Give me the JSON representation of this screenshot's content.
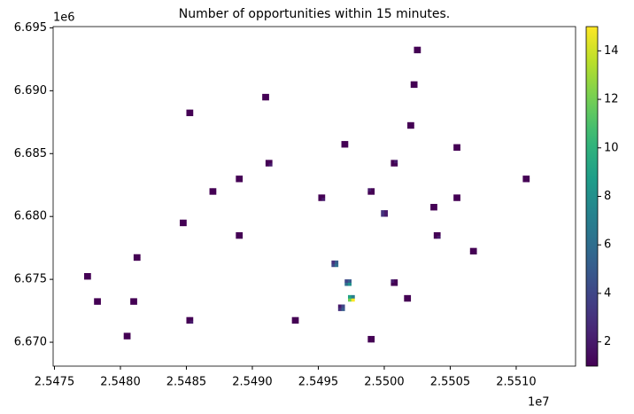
{
  "chart_data": {
    "type": "heatmap",
    "title": "Number of opportunities within 15 minutes.",
    "colormap": "viridis",
    "xlim": [
      25474900,
      25514500
    ],
    "ylim": [
      6668100,
      6695100
    ],
    "xticks": [
      {
        "value": 25475000,
        "label": "2.5475"
      },
      {
        "value": 25480000,
        "label": "2.5480"
      },
      {
        "value": 25485000,
        "label": "2.5485"
      },
      {
        "value": 25490000,
        "label": "2.5490"
      },
      {
        "value": 25495000,
        "label": "2.5495"
      },
      {
        "value": 25500000,
        "label": "2.5500"
      },
      {
        "value": 25505000,
        "label": "2.5505"
      },
      {
        "value": 25510000,
        "label": "2.5510"
      }
    ],
    "yticks": [
      {
        "value": 6670000,
        "label": "6.670"
      },
      {
        "value": 6675000,
        "label": "6.675"
      },
      {
        "value": 6680000,
        "label": "6.680"
      },
      {
        "value": 6685000,
        "label": "6.685"
      },
      {
        "value": 6690000,
        "label": "6.690"
      },
      {
        "value": 6695000,
        "label": "6.695"
      }
    ],
    "x_offset_label": "1e7",
    "y_offset_label": "1e6",
    "colorbar": {
      "lim": [
        1,
        15
      ],
      "ticks": [
        2,
        4,
        6,
        8,
        10,
        12,
        14
      ]
    },
    "x": [
      25502250,
      25502500,
      25502250,
      25502500,
      25502000,
      25502250,
      25502000,
      25502250,
      25490750,
      25491000,
      25490750,
      25491000,
      25485000,
      25485250,
      25485000,
      25485250,
      25501750,
      25502000,
      25501750,
      25502000,
      25491000,
      25491250,
      25491000,
      25491250,
      25496750,
      25497000,
      25496750,
      25497000,
      25500500,
      25500750,
      25500500,
      25500750,
      25505250,
      25505500,
      25505250,
      25505500,
      25486750,
      25487000,
      25486750,
      25487000,
      25488750,
      25489000,
      25488750,
      25489000,
      25495000,
      25495250,
      25495000,
      25495250,
      25498750,
      25499000,
      25498750,
      25499000,
      25503500,
      25503750,
      25503500,
      25503750,
      25505250,
      25505500,
      25505250,
      25505500,
      25510500,
      25510750,
      25510500,
      25510750,
      25481000,
      25481250,
      25481000,
      25481250,
      25478000,
      25478250,
      25478000,
      25478250,
      25477250,
      25477500,
      25477250,
      25477500,
      25480750,
      25481000,
      25480750,
      25481000,
      25485000,
      25485250,
      25485000,
      25485250,
      25497250,
      25497500,
      25497250,
      25497500,
      25496000,
      25496250,
      25496000,
      25496250,
      25493000,
      25493250,
      25493000,
      25493250,
      25501500,
      25501750,
      25501500,
      25501750,
      25506500,
      25506750,
      25506500,
      25506750,
      25503750,
      25504000,
      25503750,
      25504000,
      25498750,
      25499000,
      25498750,
      25499000,
      25480250,
      25480500,
      25480250,
      25480500,
      25488750,
      25489000,
      25488750,
      25489000,
      25484500,
      25484750,
      25484500,
      25484750,
      25500500,
      25500750,
      25500500,
      25500750,
      25499750,
      25500000,
      25499750,
      25500000,
      25497000,
      25497250,
      25497000,
      25497250,
      25496500,
      25496750,
      25496500,
      25496750
    ],
    "y": [
      6693000,
      6693000,
      6693250,
      6693250,
      6690250,
      6690250,
      6690500,
      6690500,
      6689250,
      6689250,
      6689500,
      6689500,
      6688000,
      6688000,
      6688250,
      6688250,
      6687000,
      6687000,
      6687250,
      6687250,
      6684000,
      6684000,
      6684250,
      6684250,
      6685500,
      6685500,
      6685750,
      6685750,
      6684000,
      6684000,
      6684250,
      6684250,
      6685250,
      6685250,
      6685500,
      6685500,
      6681750,
      6681750,
      6682000,
      6682000,
      6682750,
      6682750,
      6683000,
      6683000,
      6681250,
      6681250,
      6681500,
      6681500,
      6681750,
      6681750,
      6682000,
      6682000,
      6680500,
      6680500,
      6680750,
      6680750,
      6681250,
      6681250,
      6681500,
      6681500,
      6682750,
      6682750,
      6683000,
      6683000,
      6676500,
      6676500,
      6676750,
      6676750,
      6673000,
      6673000,
      6673250,
      6673250,
      6675000,
      6675000,
      6675250,
      6675250,
      6673000,
      6673000,
      6673250,
      6673250,
      6671500,
      6671500,
      6671750,
      6671750,
      6673250,
      6673250,
      6673500,
      6673500,
      6676000,
      6676000,
      6676250,
      6676250,
      6671500,
      6671500,
      6671750,
      6671750,
      6673250,
      6673250,
      6673500,
      6673500,
      6677000,
      6677000,
      6677250,
      6677250,
      6678250,
      6678250,
      6678500,
      6678500,
      6670000,
      6670000,
      6670250,
      6670250,
      6670250,
      6670250,
      6670500,
      6670500,
      6678250,
      6678250,
      6678500,
      6678500,
      6679250,
      6679250,
      6679500,
      6679500,
      6674500,
      6674500,
      6674750,
      6674750,
      6680000,
      6680000,
      6680250,
      6680250,
      6674500,
      6674500,
      6674750,
      6674750,
      6672500,
      6672500,
      6672750,
      6672750
    ],
    "values": [
      1,
      1,
      1,
      1,
      1,
      1,
      1,
      1,
      1,
      1,
      1,
      1,
      1,
      1,
      1,
      1,
      1,
      1,
      1,
      1,
      1,
      2,
      1,
      1,
      1,
      1,
      1,
      1,
      1,
      1,
      1,
      2,
      1,
      1,
      1,
      1,
      1,
      1,
      1,
      1,
      1,
      1,
      1,
      1,
      1,
      2,
      1,
      1,
      1,
      1,
      2,
      1,
      1,
      1,
      1,
      1,
      1,
      1,
      1,
      1,
      1,
      1,
      1,
      1,
      1,
      1,
      1,
      1,
      1,
      1,
      1,
      1,
      1,
      1,
      1,
      1,
      1,
      1,
      1,
      1,
      1,
      2,
      1,
      1,
      12,
      15,
      9,
      7,
      4,
      6,
      3,
      5,
      1,
      1,
      1,
      1,
      1,
      1,
      1,
      1,
      1,
      1,
      1,
      1,
      1,
      2,
      1,
      1,
      1,
      1,
      1,
      1,
      1,
      1,
      1,
      1,
      1,
      1,
      1,
      1,
      1,
      1,
      1,
      1,
      1,
      1,
      2,
      1,
      3,
      2,
      3,
      2,
      6,
      8,
      4,
      5,
      3,
      5,
      2,
      4
    ]
  }
}
